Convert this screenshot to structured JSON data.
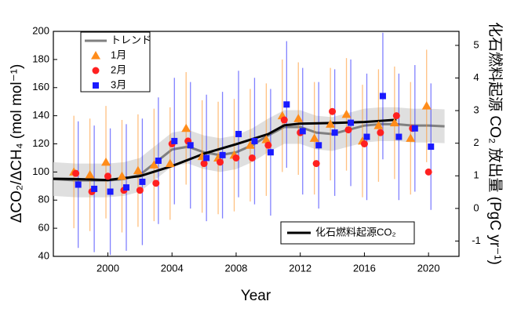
{
  "chart_data": {
    "type": "scatter",
    "x_label": "Year",
    "y_label": "ΔCO₂/ΔCH₄ (mol mol⁻¹)",
    "y2_label": "化石燃料起源 CO₂ 放出量 (PgC yr⁻¹)",
    "xlim": [
      1996.6,
      2021.9
    ],
    "xticks": [
      2000,
      2004,
      2008,
      2012,
      2016,
      2020
    ],
    "ylim": [
      40,
      200
    ],
    "yticks": [
      40,
      60,
      80,
      100,
      120,
      140,
      160,
      180,
      200
    ],
    "y2lim": [
      -1.47,
      5.43
    ],
    "y2ticks": [
      -1,
      0,
      1,
      2,
      3,
      4,
      5
    ],
    "x": [
      1998,
      1999,
      2000,
      2001,
      2002,
      2003,
      2004,
      2005,
      2006,
      2007,
      2008,
      2009,
      2010,
      2011,
      2012,
      2013,
      2014,
      2015,
      2016,
      2017,
      2018,
      2019,
      2020
    ],
    "series": [
      {
        "name": "トレンド",
        "type": "line",
        "color": "#808080",
        "band": 12,
        "x": [
          1996.6,
          1998,
          1999,
          2000,
          2001,
          2002,
          2003,
          2004,
          2005,
          2006,
          2007,
          2008,
          2009,
          2010,
          2011,
          2012,
          2013,
          2014,
          2015,
          2016,
          2017,
          2018,
          2019,
          2020,
          2021
        ],
        "values": [
          95,
          94,
          94,
          94,
          95,
          98,
          107,
          116,
          118,
          114,
          112,
          114,
          119,
          126,
          132,
          132,
          128,
          127,
          130,
          133,
          134,
          134,
          133,
          133,
          132.5
        ]
      },
      {
        "name": "1月",
        "type": "scatter",
        "marker": "triangle",
        "color": "#ff8c1a",
        "error": 40,
        "values": [
          100,
          98,
          107,
          97,
          101,
          105,
          106,
          131,
          111,
          110,
          112,
          119,
          123,
          140,
          138,
          124,
          134,
          141,
          122,
          133,
          135,
          124,
          147
        ]
      },
      {
        "name": "2月",
        "type": "scatter",
        "marker": "circle",
        "color": "#ff2020",
        "values": [
          99,
          86,
          97,
          87,
          87,
          92,
          120,
          122,
          106,
          107,
          110,
          110,
          119,
          137,
          128,
          106,
          143,
          130,
          120,
          128,
          140,
          131,
          100
        ]
      },
      {
        "name": "3月",
        "type": "scatter",
        "marker": "square",
        "color": "#1a1aff",
        "error": 45,
        "values": [
          91,
          88,
          86,
          89,
          93,
          108,
          122,
          119,
          110,
          112,
          127,
          122,
          114,
          148,
          129,
          119,
          128,
          135,
          125,
          154,
          125,
          131,
          118
        ]
      },
      {
        "name": "化石燃料起源CO₂",
        "type": "line",
        "axis": "y2",
        "color": "#000000",
        "x": [
          1996.6,
          1998,
          2000,
          2002,
          2004,
          2006,
          2008,
          2010,
          2011,
          2012,
          2014,
          2016,
          2018
        ],
        "values": [
          0.91,
          0.9,
          0.87,
          0.99,
          1.3,
          1.68,
          1.97,
          2.28,
          2.55,
          2.6,
          2.62,
          2.65,
          2.72
        ]
      }
    ]
  }
}
